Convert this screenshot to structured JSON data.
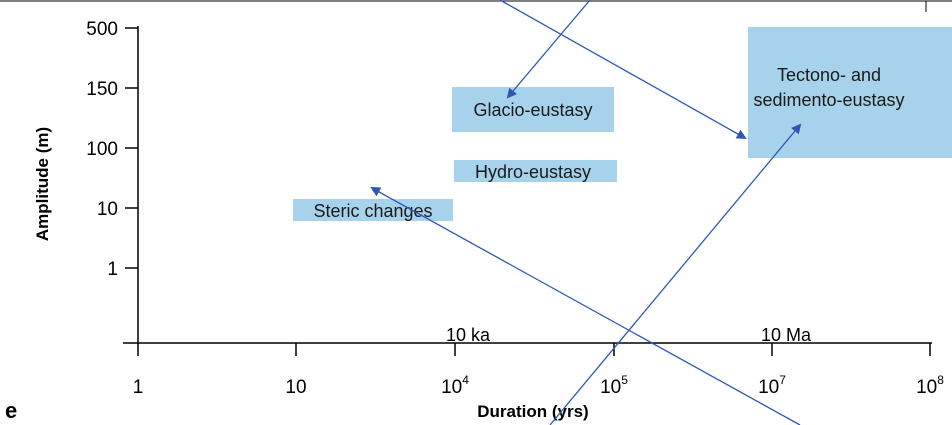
{
  "panel_letter": "e",
  "colors": {
    "box_fill": "#a6d2ec",
    "arrow_color": "#2e56b5",
    "axis_color": "#000000"
  },
  "chart_data": {
    "type": "diagram",
    "xlabel": "Duration (yrs)",
    "ylabel": "Amplitude (m)",
    "x_ticks": [
      {
        "base": "1",
        "exp": ""
      },
      {
        "base": "10",
        "exp": ""
      },
      {
        "base": "10",
        "exp": "4"
      },
      {
        "base": "10",
        "exp": "5"
      },
      {
        "base": "10",
        "exp": "7"
      },
      {
        "base": "10",
        "exp": "8"
      }
    ],
    "y_ticks": [
      "500",
      "150",
      "100",
      "10",
      "1"
    ],
    "boxes": [
      {
        "name": "glacio-eustasy",
        "lines": [
          "Glacio-eustasy"
        ]
      },
      {
        "name": "hydro-eustasy",
        "lines": [
          "Hydro-eustasy"
        ]
      },
      {
        "name": "steric-changes",
        "lines": [
          "Steric changes"
        ]
      },
      {
        "name": "tectono-sedimento-eustasy",
        "lines": [
          "Tectono- and",
          "sedimento-eustasy"
        ]
      }
    ],
    "annotations": [
      "10 ka",
      "10 Ma"
    ]
  }
}
